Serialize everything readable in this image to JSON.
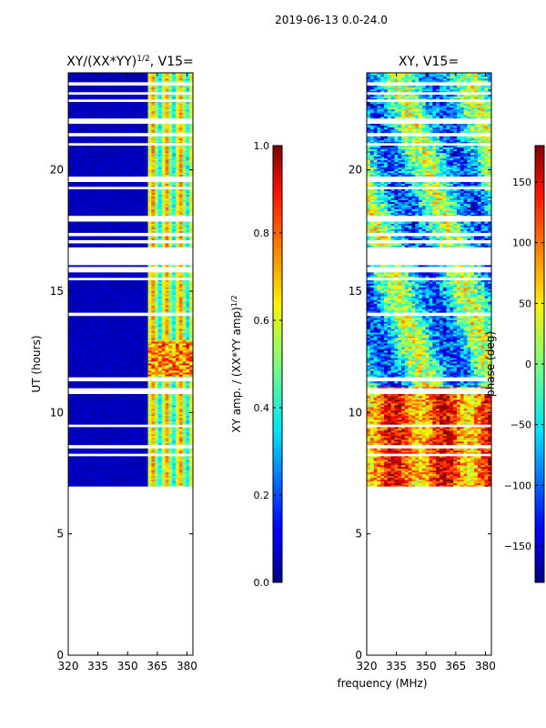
{
  "chart_data": {
    "type": "heatmap",
    "suptitle": "2019-06-13 0.0-24.0",
    "shared_xlabel": "frequency (MHz)",
    "panels": [
      {
        "id": "amp",
        "title": "XY/(XX*YY)",
        "title_sup": "1/2",
        "title_suffix": ", V15=",
        "ylabel": "UT (hours)",
        "xlim": [
          320,
          383
        ],
        "ylim": [
          0,
          24
        ],
        "xticks": [
          320,
          335,
          350,
          365,
          380
        ],
        "yticks": [
          0,
          5,
          10,
          15,
          20
        ],
        "data_ut_range": [
          6.8,
          24
        ],
        "colorbar": {
          "label": "XY amp. / (XX*YY amp)",
          "label_sup": "1/2",
          "range": [
            0.0,
            1.0
          ],
          "ticks": [
            "0.0",
            "0.2",
            "0.4",
            "0.6",
            "0.8",
            "1.0"
          ]
        }
      },
      {
        "id": "phase",
        "title": "XY, V15=",
        "xlim": [
          320,
          383
        ],
        "ylim": [
          0,
          24
        ],
        "xticks": [
          320,
          335,
          350,
          365,
          380
        ],
        "yticks": [
          0,
          5,
          10,
          15,
          20
        ],
        "data_ut_range": [
          6.8,
          24
        ],
        "colorbar": {
          "label": "phase (deg)",
          "range": [
            -180,
            180
          ],
          "ticks": [
            "150",
            "100",
            "50",
            "0",
            "−50",
            "−100",
            "−150"
          ]
        }
      }
    ],
    "blank_ut_bands": [
      [
        6.8,
        6.95
      ],
      [
        8.2,
        8.3
      ],
      [
        8.55,
        8.65
      ],
      [
        9.4,
        9.5
      ],
      [
        10.8,
        11.0
      ],
      [
        11.3,
        11.45
      ],
      [
        14.0,
        14.1
      ],
      [
        15.45,
        15.55
      ],
      [
        15.8,
        16.0
      ],
      [
        16.1,
        16.7
      ],
      [
        17.0,
        17.1
      ],
      [
        17.3,
        17.4
      ],
      [
        17.9,
        18.1
      ],
      [
        18.1,
        18.0
      ],
      [
        19.5,
        19.7
      ],
      [
        21.4,
        21.5
      ],
      [
        21.0,
        21.1
      ],
      [
        21.9,
        22.1
      ],
      [
        22.8,
        22.9
      ],
      [
        23.1,
        23.2
      ],
      [
        23.5,
        23.6
      ],
      [
        16.7,
        16.8
      ],
      [
        19.2,
        19.3
      ],
      [
        18.0,
        17.9
      ]
    ],
    "empty_ut_spans": [
      [
        17.9,
        18.1
      ],
      [
        16.0,
        16.7
      ]
    ]
  }
}
